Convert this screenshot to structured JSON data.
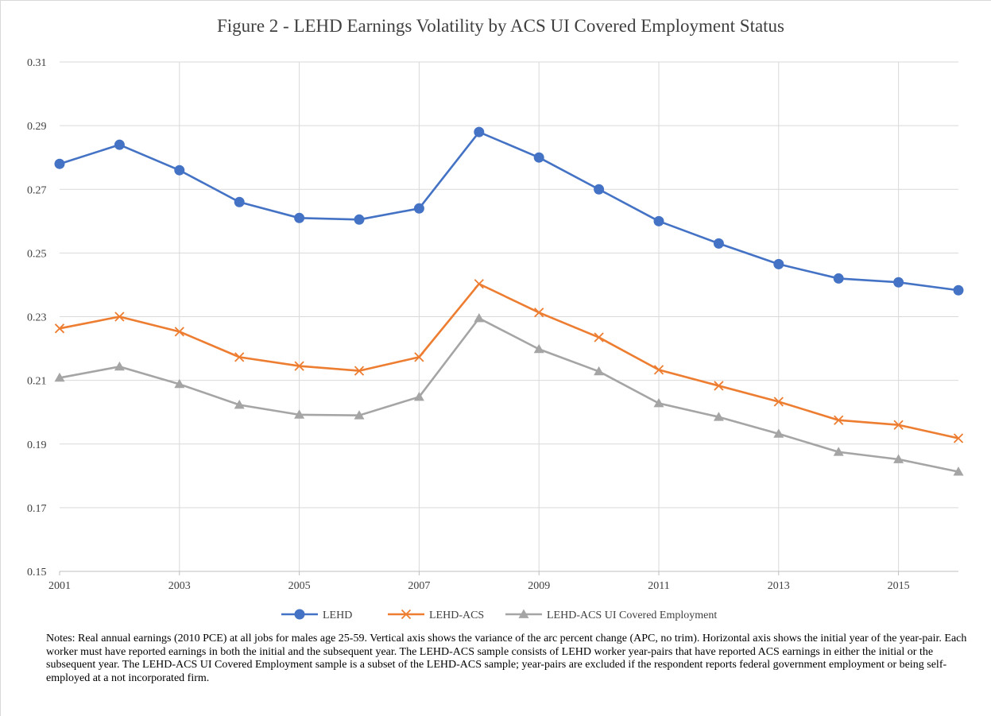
{
  "chart_data": {
    "type": "line",
    "title": "Figure 2 - LEHD Earnings Volatility by ACS UI Covered Employment Status",
    "xlabel": "",
    "ylabel": "",
    "x": [
      2001,
      2002,
      2003,
      2004,
      2005,
      2006,
      2007,
      2008,
      2009,
      2010,
      2011,
      2012,
      2013,
      2014,
      2015,
      2016
    ],
    "xlim": [
      2001,
      2016
    ],
    "ylim": [
      0.15,
      0.31
    ],
    "yticks": [
      "0.15",
      "0.17",
      "0.19",
      "0.21",
      "0.23",
      "0.25",
      "0.27",
      "0.29",
      "0.31"
    ],
    "xticks": [
      "2001",
      "2003",
      "2005",
      "2007",
      "2009",
      "2011",
      "2013",
      "2015"
    ],
    "grid": "horizontal",
    "legend_position": "bottom",
    "series": [
      {
        "name": "LEHD",
        "color": "#4472c4",
        "marker": "circle",
        "values": [
          0.278,
          0.284,
          0.276,
          0.266,
          0.261,
          0.2605,
          0.264,
          0.288,
          0.28,
          0.27,
          0.26,
          0.253,
          0.2465,
          0.242,
          0.2408,
          0.2383
        ]
      },
      {
        "name": "LEHD-ACS",
        "color": "#ed7d31",
        "marker": "x",
        "values": [
          0.2263,
          0.23,
          0.2253,
          0.2173,
          0.2145,
          0.213,
          0.2173,
          0.2403,
          0.2313,
          0.2235,
          0.2133,
          0.2083,
          0.2033,
          0.1975,
          0.196,
          0.1918
        ]
      },
      {
        "name": "LEHD-ACS UI Covered Employment",
        "color": "#a5a5a5",
        "marker": "triangle",
        "values": [
          0.2108,
          0.2143,
          0.2088,
          0.2023,
          0.1992,
          0.199,
          0.2048,
          0.2295,
          0.2198,
          0.2128,
          0.2028,
          0.1985,
          0.1932,
          0.1875,
          0.1852,
          0.1813
        ]
      }
    ]
  },
  "notes": "Notes: Real annual earnings (2010 PCE) at all jobs for males age 25-59. Vertical axis shows the variance of the arc percent change (APC, no trim). Horizontal axis shows the initial year of the year-pair. Each worker must have reported earnings in both the initial and the subsequent year. The LEHD-ACS sample consists of LEHD worker year-pairs that have reported ACS earnings in either the initial or the subsequent year. The LEHD-ACS UI Covered Employment sample is a subset of the LEHD-ACS sample; year-pairs are excluded if the respondent reports federal government employment or being self-employed at a not incorporated firm."
}
